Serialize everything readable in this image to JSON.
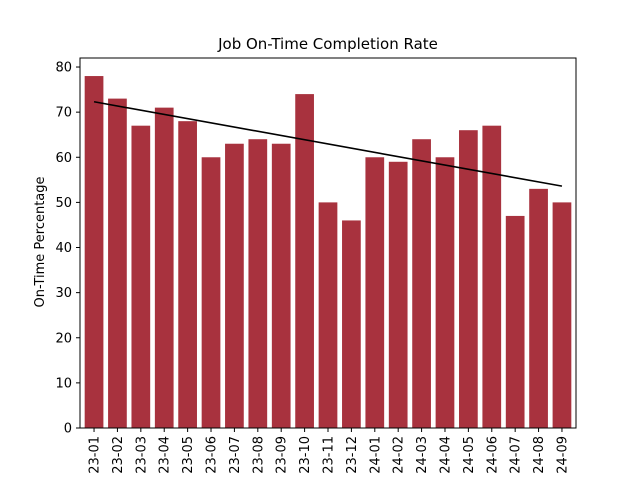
{
  "chart_data": {
    "type": "bar",
    "title": "Job On-Time Completion Rate",
    "xlabel": "",
    "ylabel": "On-Time Percentage",
    "categories": [
      "23-01",
      "23-02",
      "23-03",
      "23-04",
      "23-05",
      "23-06",
      "23-07",
      "23-08",
      "23-09",
      "23-10",
      "23-11",
      "23-12",
      "24-01",
      "24-02",
      "24-03",
      "24-04",
      "24-05",
      "24-06",
      "24-07",
      "24-08",
      "24-09"
    ],
    "values": [
      78,
      73,
      67,
      71,
      68,
      60,
      63,
      64,
      63,
      74,
      50,
      46,
      60,
      59,
      64,
      60,
      66,
      67,
      47,
      53,
      50
    ],
    "trendline": {
      "start": 72.3,
      "end": 53.6,
      "color": "#000000"
    },
    "ylim": [
      0,
      82
    ],
    "yticks": [
      0,
      10,
      20,
      30,
      40,
      50,
      60,
      70,
      80
    ],
    "bar_color": "#a8323e",
    "grid": false,
    "legend": "none"
  }
}
